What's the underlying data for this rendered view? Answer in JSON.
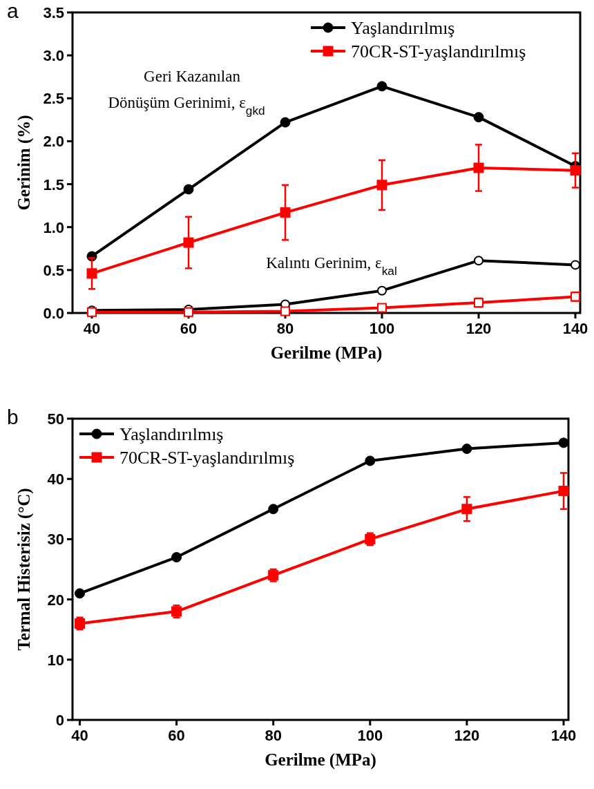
{
  "chart_data": [
    {
      "type": "line",
      "xlabel": "Gerilme (MPa)",
      "ylabel": "Gerinim (%)",
      "x": [
        40,
        60,
        80,
        100,
        120,
        140
      ],
      "xlim": [
        36,
        141
      ],
      "xticks": [
        40,
        60,
        80,
        100,
        120,
        140
      ],
      "ylim": [
        0,
        3.5
      ],
      "yticks": [
        {
          "value": 0,
          "label": "0.0"
        },
        {
          "value": 0.5,
          "label": "0.5"
        },
        {
          "value": 1,
          "label": "1.0"
        },
        {
          "value": 1.5,
          "label": "1.5"
        },
        {
          "value": 2,
          "label": "2.0"
        },
        {
          "value": 2.5,
          "label": "2.5"
        },
        {
          "value": 3,
          "label": "3.0"
        },
        {
          "value": 3.5,
          "label": "3.5"
        }
      ],
      "grid": false,
      "legend": "top right",
      "line_style": "solid",
      "series": [
        {
          "name": "Yaşlandırılmış",
          "color": "#000000",
          "marker": "circle",
          "values": [
            0.66,
            1.44,
            2.22,
            2.64,
            2.28,
            1.71
          ]
        },
        {
          "name": "70CR-ST-yaşlandırılmış",
          "color": "#ff0000",
          "marker": "square",
          "values": [
            0.46,
            0.82,
            1.17,
            1.49,
            1.69,
            1.66
          ],
          "errors": [
            [
              0.28,
              0.64
            ],
            [
              0.52,
              1.12
            ],
            [
              0.85,
              1.49
            ],
            [
              1.2,
              1.78
            ],
            [
              1.42,
              1.96
            ],
            [
              1.46,
              1.86
            ]
          ]
        },
        {
          "color": "#000000",
          "marker": "circle",
          "values": [
            0.03,
            0.04,
            0.1,
            0.26,
            0.61,
            0.56
          ]
        },
        {
          "color": "#ff0000",
          "marker": "square",
          "values": [
            0.01,
            0.01,
            0.02,
            0.06,
            0.12,
            0.19
          ],
          "errors": [
            null,
            null,
            null,
            null,
            [
              0.07,
              0.17
            ],
            [
              0.14,
              0.24
            ]
          ]
        }
      ],
      "annotations": [
        "a",
        "Geri Kazanılan",
        "Dönüşüm Gerinimi, ε$_{gkd}$",
        "Kalıntı Gerinim, ε$_{kal}$"
      ]
    },
    {
      "type": "line",
      "xlabel": "Gerilme (MPa)",
      "ylabel": "Termal Histerisiz (°C)",
      "x": [
        40,
        60,
        80,
        100,
        120,
        140
      ],
      "xlim": [
        38.5,
        141
      ],
      "xticks": [
        40,
        60,
        80,
        100,
        120,
        140
      ],
      "ylim": [
        0,
        50
      ],
      "yticks": [
        0,
        10,
        20,
        30,
        40,
        50
      ],
      "grid": false,
      "legend": "top left",
      "line_style": "solid",
      "series": [
        {
          "name": "Yaşlandırılmış",
          "color": "#000000",
          "marker": "circle",
          "values": [
            21,
            27,
            35,
            43,
            45,
            46
          ]
        },
        {
          "name": "70CR-ST-yaşlandırılmış",
          "color": "#ff0000",
          "marker": "square",
          "values": [
            16,
            18,
            24,
            30,
            35,
            38
          ],
          "errors": [
            1,
            1,
            1,
            1,
            2,
            3
          ]
        }
      ],
      "annotations": [
        "b"
      ]
    }
  ]
}
